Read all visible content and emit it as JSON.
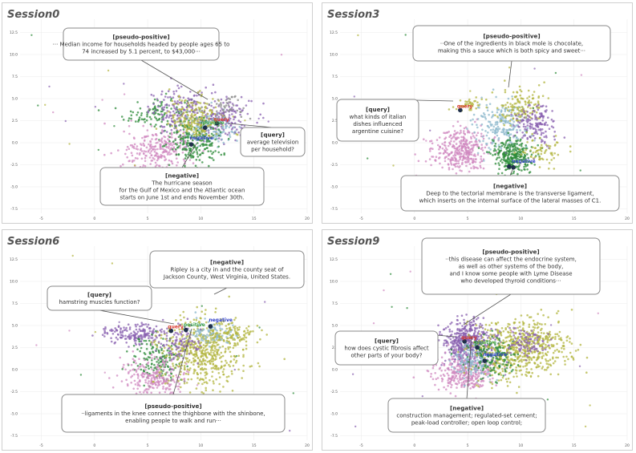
{
  "chart_data": [
    {
      "type": "scatter",
      "title": "Session0",
      "xlim": [
        -7,
        20
      ],
      "ylim": [
        -8,
        14
      ],
      "xticks": [
        "-5",
        "0",
        "5",
        "10",
        "15",
        "20"
      ],
      "yticks": [
        "12.5",
        "10.0",
        "7.5",
        "5.0",
        "2.5",
        "0.0",
        "-2.5",
        "-5.0",
        "-7.5"
      ],
      "grid": true,
      "markers": [
        {
          "name": "query",
          "label": "query",
          "x": 11.5,
          "y": 2.2
        },
        {
          "name": "positive",
          "label": "positive",
          "x": 10.4,
          "y": 1.7
        },
        {
          "name": "negative",
          "label": "negative",
          "x": 9.1,
          "y": -0.2
        }
      ],
      "callouts": [
        {
          "name": "pseudo-positive",
          "title": "[pseudo-positive]",
          "lines": [
            "··· Median income for households headed by people ages 65 to",
            "74 increased by 5.1 percent, to $43,000···"
          ]
        },
        {
          "name": "query",
          "title": "[query]",
          "lines": [
            "average television",
            "per household?"
          ]
        },
        {
          "name": "negative",
          "title": "[negative]",
          "lines": [
            "The hurricane season",
            "for the Gulf of Mexico and the Atlantic ocean",
            "starts on June 1st and ends November 30th."
          ]
        }
      ]
    },
    {
      "type": "scatter",
      "title": "Session3",
      "xlim": [
        -7,
        20
      ],
      "ylim": [
        -8,
        14
      ],
      "xticks": [
        "-5",
        "0",
        "5",
        "10",
        "15",
        "20"
      ],
      "yticks": [
        "12.5",
        "10.0",
        "7.5",
        "5.0",
        "2.5",
        "0.0",
        "-2.5",
        "-5.0",
        "-7.5"
      ],
      "grid": true,
      "markers": [
        {
          "name": "query",
          "label": "query",
          "x": 4.3,
          "y": 3.7
        },
        {
          "name": "positive",
          "label": "positive",
          "x": 8.9,
          "y": -2.7
        },
        {
          "name": "negative",
          "label": "negative",
          "x": 9.3,
          "y": -2.8
        }
      ],
      "callouts": [
        {
          "name": "pseudo-positive",
          "title": "[pseudo-positive]",
          "lines": [
            "··One of the ingredients in black mole is chocolate,",
            "making this a sauce which is both spicy and sweet···"
          ]
        },
        {
          "name": "query",
          "title": "[query]",
          "lines": [
            "what kinds of italian",
            "dishes influenced",
            "argentine cuisine?"
          ]
        },
        {
          "name": "negative",
          "title": "[negative]",
          "lines": [
            "Deep to the tectorial membrane is the transverse ligament,",
            "which inserts on the internal surface of the lateral masses of C1."
          ]
        }
      ]
    },
    {
      "type": "scatter",
      "title": "Session6",
      "xlim": [
        -7,
        20
      ],
      "ylim": [
        -8,
        14
      ],
      "xticks": [
        "-5",
        "0",
        "5",
        "10",
        "15",
        "20"
      ],
      "yticks": [
        "12.5",
        "10.0",
        "7.5",
        "5.0",
        "2.5",
        "0.0",
        "-2.5",
        "-5.0",
        "-7.5"
      ],
      "grid": true,
      "markers": [
        {
          "name": "query",
          "label": "query",
          "x": 7.2,
          "y": 4.4
        },
        {
          "name": "positive",
          "label": "positive",
          "x": 8.6,
          "y": 4.5
        },
        {
          "name": "negative",
          "label": "negative",
          "x": 10.9,
          "y": 4.9
        }
      ],
      "callouts": [
        {
          "name": "negative",
          "title": "[negative]",
          "lines": [
            "Ripley is a city in and the county seat of",
            "Jackson County, West Virginia, United States."
          ]
        },
        {
          "name": "query",
          "title": "[query]",
          "lines": [
            "hamstring muscles function?"
          ]
        },
        {
          "name": "pseudo-positive",
          "title": "[pseudo-positive]",
          "lines": [
            "··ligaments in the knee connect the thighbone with the shinbone,",
            "enabling people to walk and run···"
          ]
        }
      ]
    },
    {
      "type": "scatter",
      "title": "Session9",
      "xlim": [
        -7,
        20
      ],
      "ylim": [
        -8,
        14
      ],
      "xticks": [
        "-5",
        "0",
        "5",
        "10",
        "15",
        "20"
      ],
      "yticks": [
        "12.5",
        "10.0",
        "7.5",
        "5.0",
        "2.5",
        "0.0",
        "-2.5",
        "-5.0",
        "-7.5"
      ],
      "grid": true,
      "markers": [
        {
          "name": "query",
          "label": "query",
          "x": 4.7,
          "y": 3.2
        },
        {
          "name": "positive",
          "label": "positive",
          "x": 5.9,
          "y": 2.5
        },
        {
          "name": "negative",
          "label": "negative",
          "x": 6.6,
          "y": 1.0
        }
      ],
      "callouts": [
        {
          "name": "pseudo-positive",
          "title": "[pseudo-positive]",
          "lines": [
            "··this disease can affect the endocrine system,",
            "as well as other systems of the body,",
            "and I know some people with Lyme Disease",
            "who developed thyroid conditions···"
          ]
        },
        {
          "name": "query",
          "title": "[query]",
          "lines": [
            "how does cystic fibrosis affect",
            "other parts of your body?"
          ]
        },
        {
          "name": "negative",
          "title": "[negative]",
          "lines": [
            "construction management; regulated-set cement;",
            "peak-load controller; open loop control;"
          ]
        }
      ]
    }
  ],
  "colors": {
    "purple": "#8a62b0",
    "olive": "#b3b540",
    "green": "#2e8b3a",
    "pink": "#d08ac0",
    "lightblue": "#8cb8cc",
    "gray": "#8a8a8a",
    "query": "#d9362b",
    "positive": "#3aa04a",
    "negative": "#2f3fc8",
    "marker": "#1f2f4a"
  }
}
